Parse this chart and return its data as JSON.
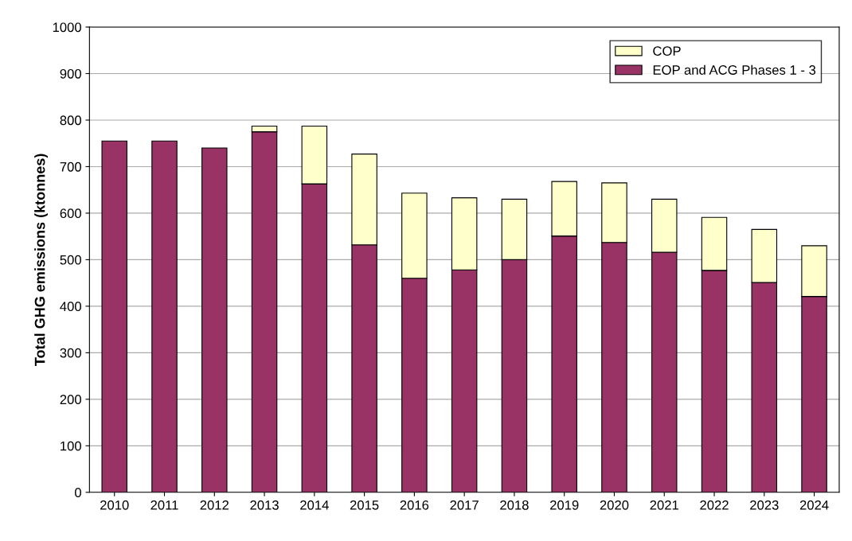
{
  "chart_data": {
    "type": "bar",
    "stacked": true,
    "ylabel": "Total GHG emissions (ktonnes)",
    "categories": [
      "2010",
      "2011",
      "2012",
      "2013",
      "2014",
      "2015",
      "2016",
      "2017",
      "2018",
      "2019",
      "2020",
      "2021",
      "2022",
      "2023",
      "2024"
    ],
    "series": [
      {
        "name": "EOP and ACG Phases 1 - 3",
        "color": "#993366",
        "values": [
          755,
          755,
          740,
          775,
          663,
          532,
          460,
          478,
          500,
          551,
          537,
          516,
          477,
          451,
          421
        ]
      },
      {
        "name": "COP",
        "color": "#ffffcc",
        "values": [
          null,
          null,
          null,
          12,
          124,
          195,
          183,
          155,
          130,
          117,
          128,
          114,
          114,
          114,
          109
        ]
      }
    ],
    "ylim": [
      0,
      1000
    ],
    "yticks": [
      0,
      100,
      200,
      300,
      400,
      500,
      600,
      700,
      800,
      900,
      1000
    ],
    "grid": "y",
    "legend": "top right"
  }
}
